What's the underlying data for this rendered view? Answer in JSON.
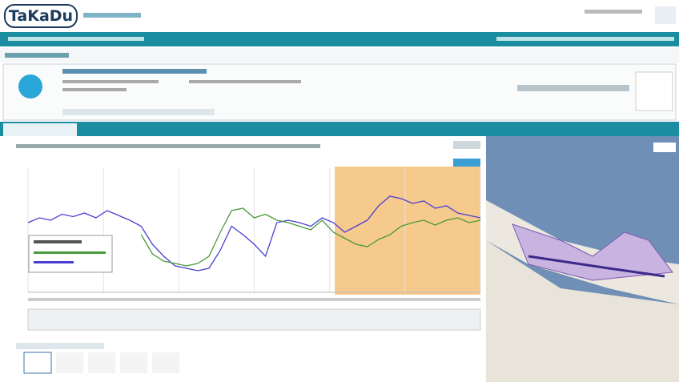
{
  "header": {
    "logo": "TaKaDu"
  },
  "chart_data": {
    "type": "line",
    "x": [
      0,
      1,
      2,
      3,
      4,
      5,
      6,
      7,
      8,
      9,
      10,
      11,
      12,
      13,
      14,
      15,
      16,
      17,
      18,
      19,
      20,
      21,
      22,
      23,
      24,
      25,
      26,
      27,
      28,
      29,
      30,
      31,
      32,
      33,
      34,
      35,
      36,
      37,
      38,
      39,
      40
    ],
    "xlim": [
      0,
      40
    ],
    "ylim": [
      0,
      100
    ],
    "series": [
      {
        "color": "#4a3fd0",
        "values": [
          58,
          62,
          60,
          65,
          63,
          66,
          62,
          68,
          64,
          60,
          55,
          40,
          30,
          22,
          20,
          18,
          20,
          35,
          55,
          48,
          40,
          30,
          58,
          60,
          58,
          55,
          62,
          58,
          50,
          55,
          60,
          72,
          80,
          78,
          74,
          76,
          70,
          72,
          66,
          64,
          62
        ]
      },
      {
        "color": "#4a9a3a",
        "values": [
          null,
          null,
          null,
          null,
          null,
          null,
          null,
          null,
          null,
          null,
          48,
          32,
          26,
          24,
          22,
          24,
          30,
          50,
          68,
          70,
          62,
          65,
          60,
          58,
          55,
          52,
          60,
          50,
          45,
          40,
          38,
          44,
          48,
          55,
          58,
          60,
          56,
          60,
          62,
          58,
          60
        ]
      }
    ]
  }
}
